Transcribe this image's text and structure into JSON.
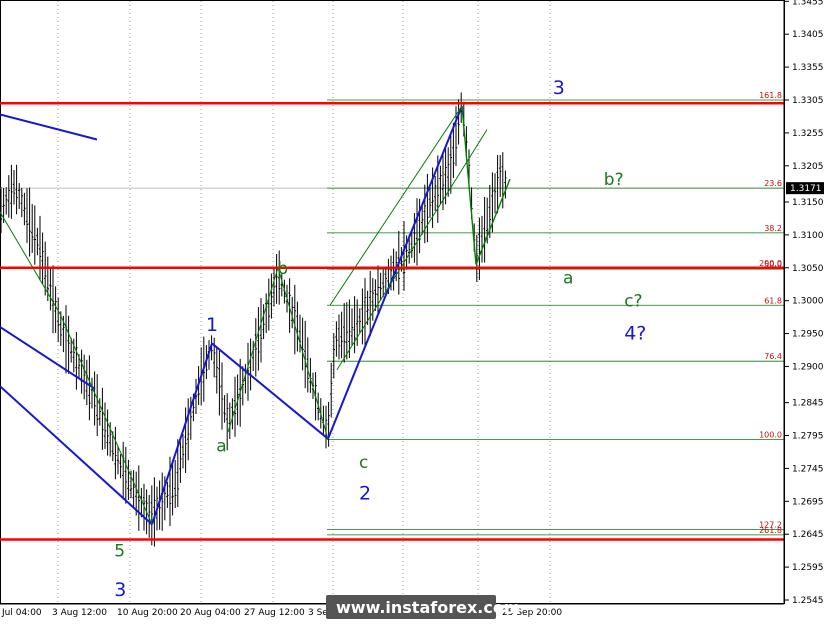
{
  "chart_data": {
    "type": "candlestick",
    "ylim": [
      1.2535,
      1.3445
    ],
    "y_ticks": [
      "1.3455",
      "1.3405",
      "1.3355",
      "1.3305",
      "1.3255",
      "1.3205",
      "1.3150",
      "1.3100",
      "1.3050",
      "1.3000",
      "1.2950",
      "1.2900",
      "1.2845",
      "1.2795",
      "1.2745",
      "1.2695",
      "1.2645",
      "1.2595",
      "1.2545"
    ],
    "y_tick_values": [
      1.3455,
      1.3405,
      1.3355,
      1.3305,
      1.3255,
      1.3205,
      1.315,
      1.31,
      1.305,
      1.3,
      1.295,
      1.29,
      1.2845,
      1.2795,
      1.2745,
      1.2695,
      1.2645,
      1.2595,
      1.2545
    ],
    "x_ticks": [
      "Jul 04:00",
      "3 Aug 12:00",
      "10 Aug 20:00",
      "20 Aug 04:00",
      "27 Aug 12:00",
      "3 Sep",
      "25 Sep 20:00"
    ],
    "current_price": "1.3171",
    "current_price_value": 1.3171,
    "fib_levels": [
      {
        "label": "161.8",
        "value": 1.3305
      },
      {
        "label": "23.6",
        "value": 1.3171
      },
      {
        "label": "38.2",
        "value": 1.3103
      },
      {
        "label": "200.0",
        "value": 1.305
      },
      {
        "label": "50.0",
        "value": 1.3048
      },
      {
        "label": "61.8",
        "value": 1.2993
      },
      {
        "label": "76.4",
        "value": 1.2908
      },
      {
        "label": "100.0",
        "value": 1.2789
      },
      {
        "label": "127.2",
        "value": 1.2652
      },
      {
        "label": "261.8",
        "value": 1.2644
      }
    ],
    "red_levels": [
      1.33,
      1.305,
      1.2637
    ],
    "wave_labels": [
      {
        "text": "3",
        "color": "blue",
        "x": "Sep 21",
        "y": 1.3323
      },
      {
        "text": "1",
        "color": "blue",
        "x": "Aug 18",
        "y": 1.2963
      },
      {
        "text": "2",
        "color": "blue",
        "x": "Sep 02",
        "y": 1.2707
      },
      {
        "text": "3",
        "color": "blue",
        "x": "Aug 09",
        "y": 1.256
      },
      {
        "text": "4?",
        "color": "blue",
        "x": "Sep 28",
        "y": 1.295
      },
      {
        "text": "5",
        "color": "green",
        "x": "Aug 09",
        "y": 1.262
      },
      {
        "text": "a",
        "color": "green",
        "x": "Aug 19",
        "y": 1.278
      },
      {
        "text": "b",
        "color": "green",
        "x": "Aug 25",
        "y": 1.305
      },
      {
        "text": "c",
        "color": "green",
        "x": "Sep 02",
        "y": 1.2755
      },
      {
        "text": "a",
        "color": "green",
        "x": "Sep 22",
        "y": 1.3035
      },
      {
        "text": "b?",
        "color": "green",
        "x": "Sep 26",
        "y": 1.3185
      },
      {
        "text": "c?",
        "color": "green",
        "x": "Sep 28",
        "y": 1.3
      }
    ]
  },
  "watermark": "www.instaforex.com",
  "colors": {
    "red_line": "#ff0000",
    "blue_line": "#1616d6",
    "green_line": "#008000",
    "fib_line": "#0a7a0a",
    "fib_text": "#c01010"
  }
}
